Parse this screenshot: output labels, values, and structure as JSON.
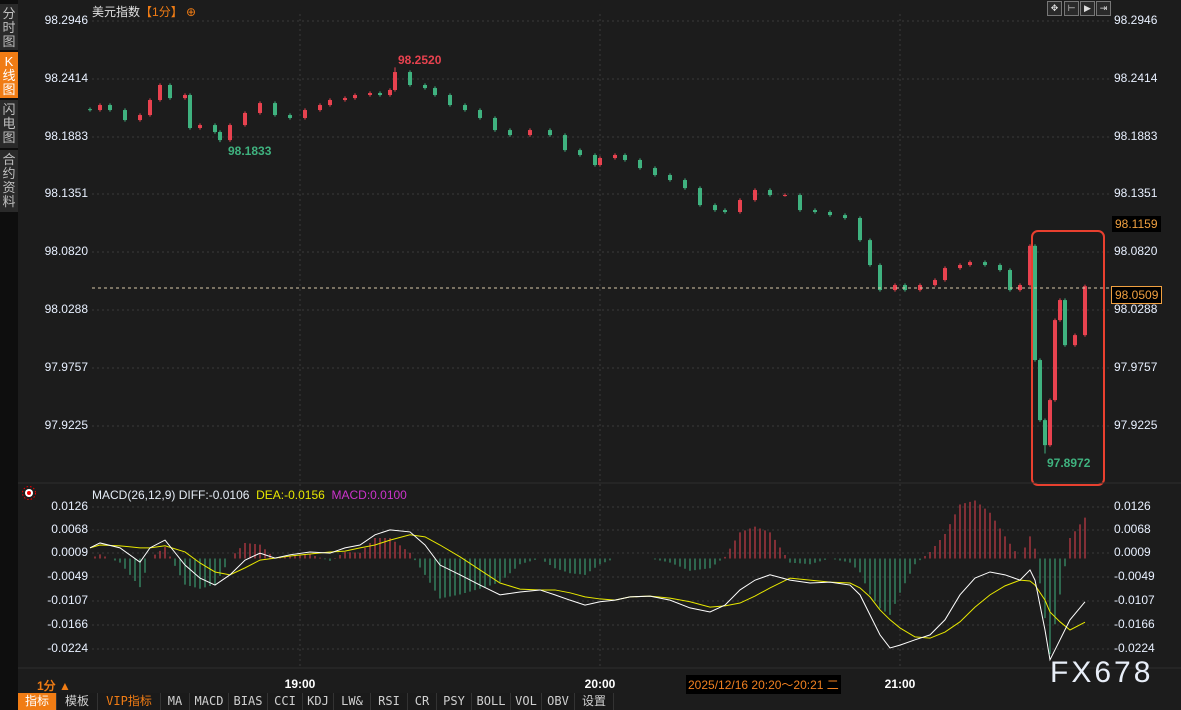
{
  "sidebar": {
    "tabs": [
      {
        "label": "分时图",
        "active": false
      },
      {
        "label": "K线图",
        "active": true
      },
      {
        "label": "闪电图",
        "active": false
      },
      {
        "label": "合约资料",
        "active": false
      }
    ]
  },
  "header": {
    "symbol": "美元指数",
    "period": "【1分】",
    "crosshair_icon": "crosshair-circle-icon"
  },
  "top_tools": [
    "move-icon",
    "zoom-left-icon",
    "play-icon",
    "jump-end-icon"
  ],
  "colors": {
    "up": "#e8424f",
    "down": "#3fb27f",
    "diff": "#ffffff",
    "dea": "#e8e800",
    "macd": "#cc33cc",
    "accent": "#f07c14",
    "highlight_box": "#e8402f"
  },
  "price_panel": {
    "current_price": "98.0509",
    "marker_price": "98.1159",
    "high_label": "98.2520",
    "low_label": "98.1833",
    "low2_label": "97.8972"
  },
  "macd_panel": {
    "name": "MACD(26,12,9)",
    "diff_label": "DIFF:-0.0106",
    "dea_label": "DEA:-0.0156",
    "macd_label": "MACD:0.0100"
  },
  "time_axis": {
    "period": "1分 ▲",
    "cursor_range": "2025/12/16 20:20～20:21 二"
  },
  "toolbar": [
    "指标",
    "模板",
    "VIP指标",
    "MA",
    "MACD",
    "BIAS",
    "CCI",
    "KDJ",
    "LW&",
    "RSI",
    "CR",
    "PSY",
    "BOLL",
    "VOL",
    "OBV",
    "设置"
  ],
  "watermark": "FX678",
  "chart_data": [
    {
      "type": "candlestick",
      "title": "美元指数【1分】",
      "y_ticks": [
        "98.2946",
        "98.2414",
        "98.1883",
        "98.1351",
        "98.0820",
        "98.0288",
        "97.9757",
        "97.9225"
      ],
      "ylim": [
        97.87,
        98.2946
      ],
      "x_ticks": [
        "19:00",
        "20:00",
        "21:00"
      ],
      "grid": true,
      "candles_time_close": [
        [
          "18:18",
          98.2128
        ],
        [
          "18:20",
          98.2174
        ],
        [
          "18:22",
          98.2128
        ],
        [
          "18:25",
          98.2036
        ],
        [
          "18:28",
          98.2082
        ],
        [
          "18:30",
          98.222
        ],
        [
          "18:32",
          98.2358
        ],
        [
          "18:34",
          98.2238
        ],
        [
          "18:37",
          98.2266
        ],
        [
          "18:38",
          98.1963
        ],
        [
          "18:40",
          98.199
        ],
        [
          "18:43",
          98.1926
        ],
        [
          "18:44",
          98.1852
        ],
        [
          "18:46",
          98.199
        ],
        [
          "18:49",
          98.2101
        ],
        [
          "18:52",
          98.2192
        ],
        [
          "18:55",
          98.2082
        ],
        [
          "18:58",
          98.2055
        ],
        [
          "19:01",
          98.2128
        ],
        [
          "19:04",
          98.2174
        ],
        [
          "19:06",
          98.222
        ],
        [
          "19:09",
          98.2238
        ],
        [
          "19:11",
          98.2266
        ],
        [
          "19:14",
          98.2284
        ],
        [
          "19:16",
          98.2266
        ],
        [
          "19:18",
          98.2312
        ],
        [
          "19:19",
          98.2477
        ],
        [
          "19:22",
          98.2358
        ],
        [
          "19:25",
          98.233
        ],
        [
          "19:27",
          98.2266
        ],
        [
          "19:30",
          98.2174
        ],
        [
          "19:33",
          98.2128
        ],
        [
          "19:36",
          98.2055
        ],
        [
          "19:39",
          98.1944
        ],
        [
          "19:42",
          98.1898
        ],
        [
          "19:46",
          98.1944
        ],
        [
          "19:50",
          98.1898
        ],
        [
          "19:53",
          98.176
        ],
        [
          "19:56",
          98.1715
        ],
        [
          "19:59",
          98.1623
        ],
        [
          "20:00",
          98.1687
        ],
        [
          "20:03",
          98.1715
        ],
        [
          "20:05",
          98.1669
        ],
        [
          "20:08",
          98.1595
        ],
        [
          "20:11",
          98.1531
        ],
        [
          "20:14",
          98.1485
        ],
        [
          "20:17",
          98.1411
        ],
        [
          "20:20",
          98.1255
        ],
        [
          "20:23",
          98.1209
        ],
        [
          "20:25",
          98.1191
        ],
        [
          "20:28",
          98.1301
        ],
        [
          "20:31",
          98.1393
        ],
        [
          "20:34",
          98.1347
        ],
        [
          "20:37",
          98.1347
        ],
        [
          "20:40",
          98.1209
        ],
        [
          "20:43",
          98.1191
        ],
        [
          "20:46",
          98.1163
        ],
        [
          "20:49",
          98.1136
        ],
        [
          "20:52",
          98.0933
        ],
        [
          "20:54",
          98.0704
        ],
        [
          "20:56",
          98.0474
        ],
        [
          "20:59",
          98.052
        ],
        [
          "21:01",
          98.0474
        ],
        [
          "21:04",
          98.052
        ],
        [
          "21:07",
          98.0566
        ],
        [
          "21:09",
          98.0676
        ],
        [
          "21:12",
          98.0704
        ],
        [
          "21:14",
          98.0731
        ],
        [
          "21:17",
          98.0704
        ],
        [
          "21:20",
          98.0658
        ],
        [
          "21:22",
          98.0474
        ],
        [
          "21:24",
          98.052
        ],
        [
          "21:26",
          98.088
        ],
        [
          "21:27",
          97.9831
        ],
        [
          "21:28",
          97.9279
        ],
        [
          "21:29",
          97.9049
        ],
        [
          "21:30",
          97.9463
        ],
        [
          "21:31",
          98.0198
        ],
        [
          "21:32",
          98.0382
        ],
        [
          "21:33",
          97.9968
        ],
        [
          "21:35",
          98.006
        ],
        [
          "21:37",
          98.0509
        ]
      ],
      "extremes": [
        {
          "time": "19:19",
          "high": 98.252
        },
        {
          "time": "18:44",
          "low": 98.1833
        },
        {
          "time": "21:29",
          "low": 97.8972
        }
      ]
    },
    {
      "type": "line",
      "title": "MACD(26,12,9)",
      "y_ticks": [
        "0.0126",
        "0.0068",
        "0.0009",
        "-0.0049",
        "-0.0107",
        "-0.0166",
        "-0.0224"
      ],
      "ylim": [
        -0.025,
        0.0126
      ],
      "histogram": "2*(DIFF-DEA)",
      "series": [
        {
          "name": "DIFF",
          "points": [
            [
              "18:18",
              0.0026
            ],
            [
              "18:20",
              0.0038
            ],
            [
              "18:24",
              0.0026
            ],
            [
              "18:28",
              -0.0009
            ],
            [
              "18:30",
              0.0026
            ],
            [
              "18:33",
              0.0045
            ],
            [
              "18:37",
              -0.0016
            ],
            [
              "18:40",
              -0.0048
            ],
            [
              "18:43",
              -0.0065
            ],
            [
              "18:46",
              -0.004
            ],
            [
              "18:49",
              -0.0004
            ],
            [
              "18:52",
              0.0013
            ],
            [
              "18:55",
              0.0001
            ],
            [
              "18:58",
              0.0009
            ],
            [
              "19:02",
              0.0016
            ],
            [
              "19:06",
              0.0013
            ],
            [
              "19:09",
              0.0026
            ],
            [
              "19:12",
              0.0033
            ],
            [
              "19:15",
              0.0058
            ],
            [
              "19:18",
              0.007
            ],
            [
              "19:22",
              0.0065
            ],
            [
              "19:25",
              0.0033
            ],
            [
              "19:28",
              -0.0016
            ],
            [
              "19:32",
              -0.004
            ],
            [
              "19:36",
              -0.0065
            ],
            [
              "19:40",
              -0.0089
            ],
            [
              "19:44",
              -0.0082
            ],
            [
              "19:48",
              -0.0077
            ],
            [
              "19:51",
              -0.0089
            ],
            [
              "19:54",
              -0.0102
            ],
            [
              "19:57",
              -0.0114
            ],
            [
              "20:00",
              -0.0106
            ],
            [
              "20:03",
              -0.0102
            ],
            [
              "20:06",
              -0.0094
            ],
            [
              "20:10",
              -0.0092
            ],
            [
              "20:14",
              -0.0102
            ],
            [
              "20:18",
              -0.0121
            ],
            [
              "20:22",
              -0.0131
            ],
            [
              "20:25",
              -0.0114
            ],
            [
              "20:28",
              -0.0077
            ],
            [
              "20:31",
              -0.0053
            ],
            [
              "20:34",
              -0.004
            ],
            [
              "20:38",
              -0.0053
            ],
            [
              "20:42",
              -0.006
            ],
            [
              "20:46",
              -0.0058
            ],
            [
              "20:50",
              -0.0065
            ],
            [
              "20:52",
              -0.0089
            ],
            [
              "20:54",
              -0.0138
            ],
            [
              "20:56",
              -0.0187
            ],
            [
              "20:58",
              -0.0219
            ],
            [
              "21:00",
              -0.0212
            ],
            [
              "21:03",
              -0.0199
            ],
            [
              "21:06",
              -0.0187
            ],
            [
              "21:09",
              -0.015
            ],
            [
              "21:12",
              -0.0089
            ],
            [
              "21:15",
              -0.0048
            ],
            [
              "21:18",
              -0.0033
            ],
            [
              "21:21",
              -0.004
            ],
            [
              "21:24",
              -0.0053
            ],
            [
              "21:26",
              -0.0028
            ],
            [
              "21:27",
              -0.0053
            ],
            [
              "21:29",
              -0.0175
            ],
            [
              "21:30",
              -0.0248
            ],
            [
              "21:32",
              -0.0199
            ],
            [
              "21:34",
              -0.015
            ],
            [
              "21:37",
              -0.0106
            ]
          ]
        },
        {
          "name": "DEA",
          "points": [
            [
              "18:18",
              0.0026
            ],
            [
              "18:20",
              0.0033
            ],
            [
              "18:24",
              0.0031
            ],
            [
              "18:28",
              0.0026
            ],
            [
              "18:30",
              0.0026
            ],
            [
              "18:33",
              0.0031
            ],
            [
              "18:37",
              0.0016
            ],
            [
              "18:40",
              -0.0011
            ],
            [
              "18:43",
              -0.0033
            ],
            [
              "18:46",
              -0.004
            ],
            [
              "18:49",
              -0.0023
            ],
            [
              "18:52",
              -0.0004
            ],
            [
              "18:55",
              0.0001
            ],
            [
              "18:58",
              0.0006
            ],
            [
              "19:02",
              0.0011
            ],
            [
              "19:06",
              0.0016
            ],
            [
              "19:09",
              0.0018
            ],
            [
              "19:12",
              0.0026
            ],
            [
              "19:15",
              0.0033
            ],
            [
              "19:18",
              0.0045
            ],
            [
              "19:22",
              0.0058
            ],
            [
              "19:25",
              0.0053
            ],
            [
              "19:28",
              0.0033
            ],
            [
              "19:32",
              0.0004
            ],
            [
              "19:36",
              -0.0028
            ],
            [
              "19:40",
              -0.006
            ],
            [
              "19:44",
              -0.0075
            ],
            [
              "19:48",
              -0.0077
            ],
            [
              "19:51",
              -0.0077
            ],
            [
              "19:54",
              -0.0084
            ],
            [
              "19:57",
              -0.0094
            ],
            [
              "20:00",
              -0.0099
            ],
            [
              "20:03",
              -0.0102
            ],
            [
              "20:06",
              -0.0094
            ],
            [
              "20:10",
              -0.0092
            ],
            [
              "20:14",
              -0.0097
            ],
            [
              "20:18",
              -0.0106
            ],
            [
              "20:22",
              -0.0119
            ],
            [
              "20:25",
              -0.0116
            ],
            [
              "20:28",
              -0.0109
            ],
            [
              "20:31",
              -0.0092
            ],
            [
              "20:34",
              -0.0072
            ],
            [
              "20:38",
              -0.0048
            ],
            [
              "20:42",
              -0.0053
            ],
            [
              "20:46",
              -0.0058
            ],
            [
              "20:50",
              -0.006
            ],
            [
              "20:52",
              -0.0072
            ],
            [
              "20:54",
              -0.0094
            ],
            [
              "20:56",
              -0.0126
            ],
            [
              "20:58",
              -0.015
            ],
            [
              "21:00",
              -0.017
            ],
            [
              "21:03",
              -0.0192
            ],
            [
              "21:06",
              -0.0195
            ],
            [
              "21:09",
              -0.018
            ],
            [
              "21:12",
              -0.0155
            ],
            [
              "21:15",
              -0.0119
            ],
            [
              "21:18",
              -0.0089
            ],
            [
              "21:21",
              -0.0067
            ],
            [
              "21:24",
              -0.0053
            ],
            [
              "21:26",
              -0.0055
            ],
            [
              "21:27",
              -0.0065
            ],
            [
              "21:29",
              -0.0102
            ],
            [
              "21:30",
              -0.0131
            ],
            [
              "21:32",
              -0.0155
            ],
            [
              "21:34",
              -0.0175
            ],
            [
              "21:37",
              -0.0156
            ]
          ]
        }
      ]
    }
  ]
}
